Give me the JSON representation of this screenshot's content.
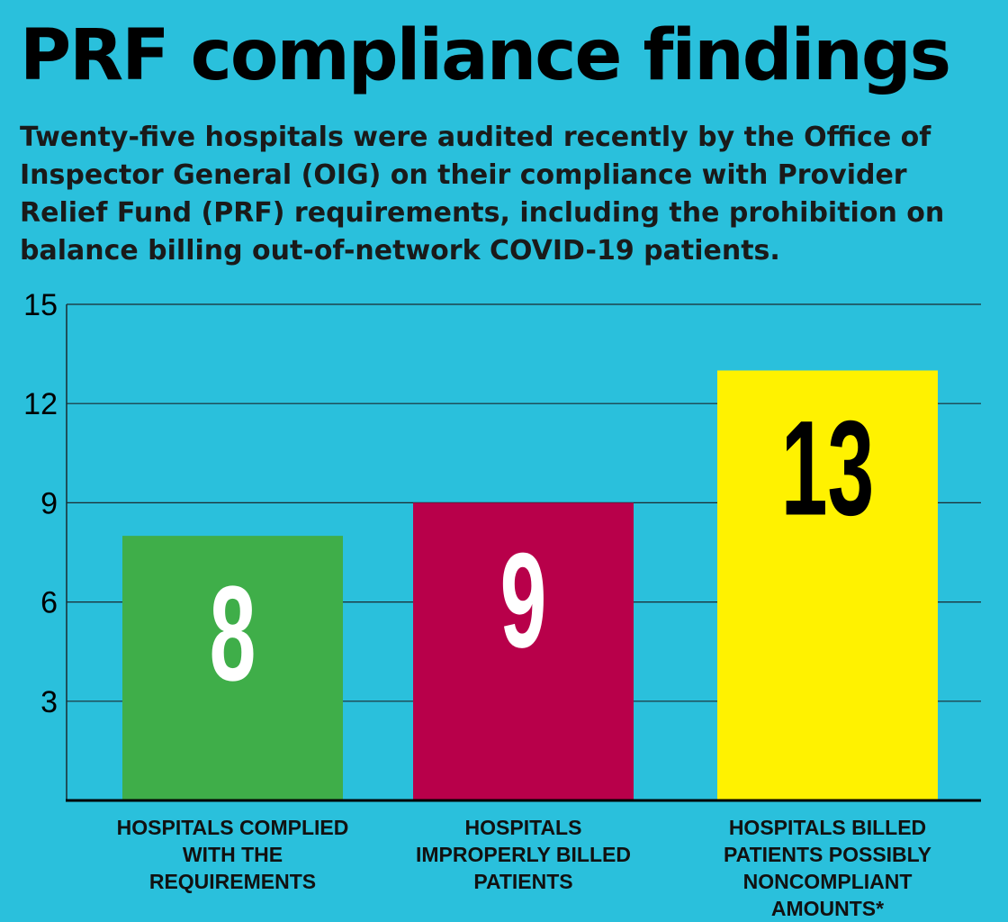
{
  "title": "PRF compliance findings",
  "subtitle": "Twenty-five hospitals were audited recently by the Office of Inspector General (OIG) on their compliance with Provider Relief Fund (PRF) requirements, including the prohibition on balance billing out-of-network COVID-19 patients.",
  "chart_data": {
    "type": "bar",
    "categories": [
      "HOSPITALS COMPLIED WITH THE REQUIREMENTS",
      "HOSPITALS IMPROPERLY BILLED PATIENTS",
      "HOSPITALS BILLED PATIENTS POSSIBLY NONCOMPLIANT AMOUNTS*"
    ],
    "values": [
      8,
      9,
      13
    ],
    "value_labels": [
      "8",
      "9",
      "13"
    ],
    "colors": [
      "#3fae49",
      "#b8004a",
      "#fff200"
    ],
    "value_label_colors": [
      "#ffffff",
      "#ffffff",
      "#000000"
    ],
    "yticks": [
      3,
      6,
      9,
      12,
      15
    ],
    "ytick_labels": [
      "3",
      "6",
      "9",
      "12",
      "15"
    ],
    "ylim": [
      0,
      15
    ],
    "grid": true,
    "xlabel": "",
    "ylabel": ""
  }
}
